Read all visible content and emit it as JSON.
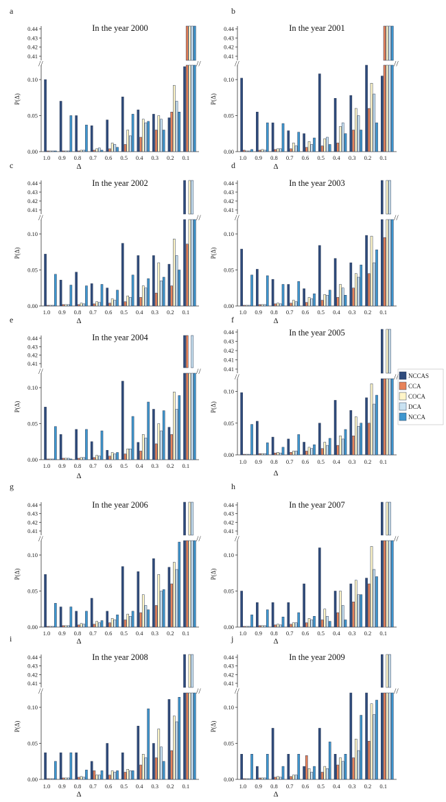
{
  "legend": {
    "placement": "right",
    "entries": [
      {
        "name": "NCCAS",
        "color": "#2f4b7c"
      },
      {
        "name": "CCA",
        "color": "#e8835a"
      },
      {
        "name": "COCA",
        "color": "#fff5c8"
      },
      {
        "name": "DCA",
        "color": "#c9e2f2"
      },
      {
        "name": "NCCA",
        "color": "#3f97cf"
      }
    ]
  },
  "axes": {
    "xlabel": "Δ",
    "ylabel": "P(Δ)",
    "x_ticks": [
      "1.0",
      "0.9",
      "0.8",
      "0.7",
      "0.6",
      "0.5",
      "0.4",
      "0.3",
      "0.2",
      "0.1"
    ],
    "y_ticks_lower": [
      "0.00",
      "0.05",
      "0.10"
    ],
    "y_ticks_upper": [
      "0.41",
      "0.42",
      "0.43",
      "0.44"
    ],
    "y_ticks_upper_2005": [
      "0.41",
      "0.41",
      "0.42",
      "0.43",
      "0.44"
    ],
    "break_mark": "//"
  },
  "chart_data": [
    {
      "type": "bar",
      "panel": "a",
      "title": "In the year 2000",
      "categories": [
        "1.0",
        "0.9",
        "0.8",
        "0.7",
        "0.6",
        "0.5",
        "0.4",
        "0.3",
        "0.2",
        "0.1"
      ],
      "ylim_lower": [
        0,
        0.12
      ],
      "ylim_upper": [
        0.405,
        0.445
      ],
      "grid": false,
      "series": [
        {
          "name": "NCCAS",
          "values": [
            0.1,
            0.07,
            0.05,
            0.036,
            0.044,
            0.076,
            0.058,
            0.052,
            0.047,
            0.118
          ]
        },
        {
          "name": "CCA",
          "values": [
            0.001,
            0.001,
            0.001,
            0.002,
            0.004,
            0.01,
            0.02,
            0.03,
            0.055,
            0.45
          ]
        },
        {
          "name": "COCA",
          "values": [
            0.001,
            0.001,
            0.002,
            0.004,
            0.012,
            0.03,
            0.045,
            0.05,
            0.092,
            0.45
          ]
        },
        {
          "name": "DCA",
          "values": [
            0.001,
            0.001,
            0.002,
            0.005,
            0.01,
            0.022,
            0.04,
            0.045,
            0.07,
            0.45
          ]
        },
        {
          "name": "NCCA",
          "values": [
            0.001,
            0.05,
            0.037,
            0.002,
            0.006,
            0.052,
            0.042,
            0.03,
            0.055,
            0.45
          ]
        }
      ]
    },
    {
      "type": "bar",
      "panel": "b",
      "title": "In the year 2001",
      "categories": [
        "1.0",
        "0.9",
        "0.8",
        "0.7",
        "0.6",
        "0.5",
        "0.4",
        "0.3",
        "0.2",
        "0.1"
      ],
      "ylim_lower": [
        0,
        0.12
      ],
      "ylim_upper": [
        0.405,
        0.445
      ],
      "grid": false,
      "series": [
        {
          "name": "NCCAS",
          "values": [
            0.102,
            0.055,
            0.04,
            0.029,
            0.025,
            0.108,
            0.074,
            0.078,
            0.12,
            0.105
          ]
        },
        {
          "name": "CCA",
          "values": [
            0.002,
            0.002,
            0.003,
            0.004,
            0.006,
            0.008,
            0.012,
            0.03,
            0.06,
            0.45
          ]
        },
        {
          "name": "COCA",
          "values": [
            0.001,
            0.003,
            0.004,
            0.012,
            0.014,
            0.018,
            0.035,
            0.06,
            0.095,
            0.45
          ]
        },
        {
          "name": "DCA",
          "values": [
            0.001,
            0.002,
            0.004,
            0.008,
            0.01,
            0.02,
            0.04,
            0.05,
            0.08,
            0.45
          ]
        },
        {
          "name": "NCCA",
          "values": [
            0.003,
            0.04,
            0.039,
            0.027,
            0.019,
            0.01,
            0.025,
            0.03,
            0.04,
            0.45
          ]
        }
      ]
    },
    {
      "type": "bar",
      "panel": "c",
      "title": "In the year 2002",
      "categories": [
        "1.0",
        "0.9",
        "0.8",
        "0.7",
        "0.6",
        "0.5",
        "0.4",
        "0.3",
        "0.2",
        "0.1"
      ],
      "ylim_lower": [
        0,
        0.12
      ],
      "ylim_upper": [
        0.405,
        0.445
      ],
      "grid": false,
      "series": [
        {
          "name": "NCCAS",
          "values": [
            0.072,
            0.036,
            0.047,
            0.031,
            0.025,
            0.087,
            0.07,
            0.07,
            0.058,
            0.45
          ]
        },
        {
          "name": "CCA",
          "values": [
            0.001,
            0.002,
            0.002,
            0.003,
            0.004,
            0.006,
            0.012,
            0.018,
            0.028,
            0.086
          ]
        },
        {
          "name": "COCA",
          "values": [
            0.001,
            0.002,
            0.004,
            0.006,
            0.01,
            0.014,
            0.028,
            0.06,
            0.093,
            0.45
          ]
        },
        {
          "name": "DCA",
          "values": [
            0.001,
            0.002,
            0.003,
            0.005,
            0.008,
            0.012,
            0.025,
            0.035,
            0.07,
            0.45
          ]
        },
        {
          "name": "NCCA",
          "values": [
            0.044,
            0.029,
            0.028,
            0.03,
            0.022,
            0.043,
            0.038,
            0.04,
            0.05,
            0.12
          ]
        }
      ]
    },
    {
      "type": "bar",
      "panel": "d",
      "title": "In the year 2003",
      "categories": [
        "1.0",
        "0.9",
        "0.8",
        "0.7",
        "0.6",
        "0.5",
        "0.4",
        "0.3",
        "0.2",
        "0.1"
      ],
      "ylim_lower": [
        0,
        0.12
      ],
      "ylim_upper": [
        0.405,
        0.445
      ],
      "grid": false,
      "series": [
        {
          "name": "NCCAS",
          "values": [
            0.079,
            0.051,
            0.037,
            0.03,
            0.024,
            0.084,
            0.066,
            0.06,
            0.098,
            0.45
          ]
        },
        {
          "name": "CCA",
          "values": [
            0.001,
            0.002,
            0.003,
            0.004,
            0.005,
            0.008,
            0.012,
            0.025,
            0.045,
            0.095
          ]
        },
        {
          "name": "COCA",
          "values": [
            0.001,
            0.002,
            0.004,
            0.008,
            0.012,
            0.016,
            0.03,
            0.045,
            0.097,
            0.45
          ]
        },
        {
          "name": "DCA",
          "values": [
            0.001,
            0.002,
            0.003,
            0.006,
            0.01,
            0.015,
            0.025,
            0.04,
            0.06,
            0.45
          ]
        },
        {
          "name": "NCCA",
          "values": [
            0.043,
            0.042,
            0.03,
            0.034,
            0.017,
            0.022,
            0.015,
            0.057,
            0.078,
            0.12
          ]
        }
      ]
    },
    {
      "type": "bar",
      "panel": "e",
      "title": "In the year 2004",
      "categories": [
        "1.0",
        "0.9",
        "0.8",
        "0.7",
        "0.6",
        "0.5",
        "0.4",
        "0.3",
        "0.2",
        "0.1"
      ],
      "ylim_lower": [
        0,
        0.12
      ],
      "ylim_upper": [
        0.405,
        0.445
      ],
      "grid": false,
      "series": [
        {
          "name": "NCCAS",
          "values": [
            0.073,
            0.035,
            0.042,
            0.025,
            0.013,
            0.109,
            0.024,
            0.07,
            0.045,
            0.45
          ]
        },
        {
          "name": "CCA",
          "values": [
            0.001,
            0.002,
            0.002,
            0.003,
            0.005,
            0.008,
            0.012,
            0.022,
            0.035,
            0.45
          ]
        },
        {
          "name": "COCA",
          "values": [
            0.001,
            0.002,
            0.003,
            0.006,
            0.01,
            0.015,
            0.035,
            0.05,
            0.094,
            0.12
          ]
        },
        {
          "name": "DCA",
          "values": [
            0.001,
            0.002,
            0.003,
            0.005,
            0.008,
            0.015,
            0.03,
            0.04,
            0.07,
            0.45
          ]
        },
        {
          "name": "NCCA",
          "values": [
            0.046,
            0.001,
            0.042,
            0.04,
            0.01,
            0.06,
            0.08,
            0.068,
            0.089,
            0.12
          ]
        }
      ]
    },
    {
      "type": "bar",
      "panel": "f",
      "title": "In the year 2005",
      "categories": [
        "1.0",
        "0.9",
        "0.8",
        "0.7",
        "0.6",
        "0.5",
        "0.4",
        "0.3",
        "0.2",
        "0.1"
      ],
      "ylim_lower": [
        0,
        0.12
      ],
      "ylim_upper": [
        0.405,
        0.445
      ],
      "grid": false,
      "series": [
        {
          "name": "NCCAS",
          "values": [
            0.098,
            0.053,
            0.028,
            0.025,
            0.02,
            0.05,
            0.086,
            0.07,
            0.09,
            0.45
          ]
        },
        {
          "name": "CCA",
          "values": [
            0.001,
            0.002,
            0.003,
            0.004,
            0.006,
            0.01,
            0.015,
            0.03,
            0.05,
            0.12
          ]
        },
        {
          "name": "COCA",
          "values": [
            0.001,
            0.002,
            0.004,
            0.006,
            0.012,
            0.02,
            0.03,
            0.06,
            0.112,
            0.45
          ]
        },
        {
          "name": "DCA",
          "values": [
            0.001,
            0.002,
            0.003,
            0.006,
            0.01,
            0.015,
            0.025,
            0.045,
            0.08,
            0.45
          ]
        },
        {
          "name": "NCCA",
          "values": [
            0.048,
            0.019,
            0.012,
            0.032,
            0.016,
            0.026,
            0.04,
            0.05,
            0.094,
            0.12
          ]
        }
      ]
    },
    {
      "type": "bar",
      "panel": "g",
      "title": "In the year 2006",
      "categories": [
        "1.0",
        "0.9",
        "0.8",
        "0.7",
        "0.6",
        "0.5",
        "0.4",
        "0.3",
        "0.2",
        "0.1"
      ],
      "ylim_lower": [
        0,
        0.12
      ],
      "ylim_upper": [
        0.405,
        0.445
      ],
      "grid": false,
      "series": [
        {
          "name": "NCCAS",
          "values": [
            0.073,
            0.028,
            0.022,
            0.04,
            0.022,
            0.084,
            0.077,
            0.095,
            0.083,
            0.45
          ]
        },
        {
          "name": "CCA",
          "values": [
            0.001,
            0.002,
            0.003,
            0.004,
            0.006,
            0.01,
            0.02,
            0.03,
            0.06,
            0.12
          ]
        },
        {
          "name": "COCA",
          "values": [
            0.001,
            0.002,
            0.005,
            0.008,
            0.012,
            0.018,
            0.045,
            0.073,
            0.09,
            0.45
          ]
        },
        {
          "name": "DCA",
          "values": [
            0.001,
            0.002,
            0.004,
            0.006,
            0.01,
            0.015,
            0.03,
            0.05,
            0.08,
            0.45
          ]
        },
        {
          "name": "NCCA",
          "values": [
            0.033,
            0.028,
            0.022,
            0.009,
            0.017,
            0.022,
            0.024,
            0.052,
            0.118,
            0.12
          ]
        }
      ]
    },
    {
      "type": "bar",
      "panel": "h",
      "title": "In the year 2007",
      "categories": [
        "1.0",
        "0.9",
        "0.8",
        "0.7",
        "0.6",
        "0.5",
        "0.4",
        "0.3",
        "0.2",
        "0.1"
      ],
      "ylim_lower": [
        0,
        0.12
      ],
      "ylim_upper": [
        0.405,
        0.445
      ],
      "grid": false,
      "series": [
        {
          "name": "NCCAS",
          "values": [
            0.05,
            0.034,
            0.034,
            0.034,
            0.06,
            0.11,
            0.05,
            0.06,
            0.068,
            0.45
          ]
        },
        {
          "name": "CCA",
          "values": [
            0.001,
            0.002,
            0.003,
            0.004,
            0.006,
            0.01,
            0.02,
            0.035,
            0.06,
            0.12
          ]
        },
        {
          "name": "COCA",
          "values": [
            0.001,
            0.002,
            0.004,
            0.006,
            0.012,
            0.025,
            0.05,
            0.065,
            0.112,
            0.45
          ]
        },
        {
          "name": "DCA",
          "values": [
            0.001,
            0.002,
            0.003,
            0.006,
            0.01,
            0.015,
            0.03,
            0.045,
            0.08,
            0.45
          ]
        },
        {
          "name": "NCCA",
          "values": [
            0.017,
            0.024,
            0.014,
            0.02,
            0.015,
            0.008,
            0.01,
            0.045,
            0.07,
            0.12
          ]
        }
      ]
    },
    {
      "type": "bar",
      "panel": "i",
      "title": "In the year 2008",
      "categories": [
        "1.0",
        "0.9",
        "0.8",
        "0.7",
        "0.6",
        "0.5",
        "0.4",
        "0.3",
        "0.2",
        "0.1"
      ],
      "ylim_lower": [
        0,
        0.12
      ],
      "ylim_upper": [
        0.405,
        0.445
      ],
      "grid": false,
      "series": [
        {
          "name": "NCCAS",
          "values": [
            0.037,
            0.037,
            0.037,
            0.025,
            0.05,
            0.037,
            0.074,
            0.05,
            0.111,
            0.45
          ]
        },
        {
          "name": "CCA",
          "values": [
            0.001,
            0.002,
            0.003,
            0.012,
            0.006,
            0.01,
            0.02,
            0.03,
            0.04,
            0.12
          ]
        },
        {
          "name": "COCA",
          "values": [
            0.001,
            0.002,
            0.004,
            0.006,
            0.012,
            0.014,
            0.035,
            0.07,
            0.088,
            0.45
          ]
        },
        {
          "name": "DCA",
          "values": [
            0.001,
            0.002,
            0.003,
            0.006,
            0.01,
            0.012,
            0.03,
            0.045,
            0.08,
            0.45
          ]
        },
        {
          "name": "NCCA",
          "values": [
            0.025,
            0.037,
            0.013,
            0.012,
            0.012,
            0.012,
            0.098,
            0.025,
            0.114,
            0.12
          ]
        }
      ]
    },
    {
      "type": "bar",
      "panel": "j",
      "title": "In the year 2009",
      "categories": [
        "1.0",
        "0.9",
        "0.8",
        "0.7",
        "0.6",
        "0.5",
        "0.4",
        "0.3",
        "0.2",
        "0.1"
      ],
      "ylim_lower": [
        0,
        0.12
      ],
      "ylim_upper": [
        0.405,
        0.445
      ],
      "grid": false,
      "series": [
        {
          "name": "NCCAS",
          "values": [
            0.035,
            0.018,
            0.071,
            0.035,
            0.018,
            0.071,
            0.035,
            0.12,
            0.12,
            0.45
          ]
        },
        {
          "name": "CCA",
          "values": [
            0.001,
            0.002,
            0.003,
            0.004,
            0.033,
            0.01,
            0.02,
            0.03,
            0.053,
            0.12
          ]
        },
        {
          "name": "COCA",
          "values": [
            0.001,
            0.002,
            0.004,
            0.006,
            0.015,
            0.018,
            0.03,
            0.056,
            0.105,
            0.45
          ]
        },
        {
          "name": "DCA",
          "values": [
            0.001,
            0.002,
            0.003,
            0.006,
            0.01,
            0.015,
            0.025,
            0.04,
            0.09,
            0.45
          ]
        },
        {
          "name": "NCCA",
          "values": [
            0.035,
            0.035,
            0.018,
            0.035,
            0.018,
            0.052,
            0.035,
            0.089,
            0.11,
            0.12
          ]
        }
      ]
    }
  ]
}
